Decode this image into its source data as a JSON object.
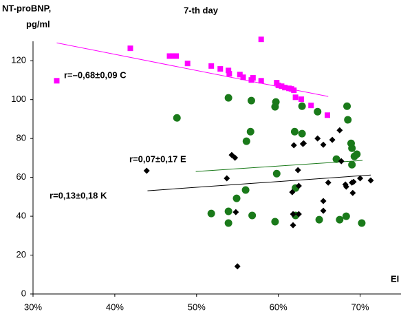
{
  "chart_data": {
    "type": "scatter",
    "title": "7-th day",
    "y_label": [
      "NT-proBNP,",
      "pg/ml"
    ],
    "x_label": "EI",
    "xlim": [
      30,
      75
    ],
    "ylim": [
      0,
      130
    ],
    "xticks": [
      {
        "value": 30,
        "label": "30%"
      },
      {
        "value": 40,
        "label": "40%"
      },
      {
        "value": 50,
        "label": "50%"
      },
      {
        "value": 60,
        "label": "60%"
      },
      {
        "value": 70,
        "label": "70%"
      }
    ],
    "yticks": [
      0,
      20,
      40,
      60,
      80,
      100,
      120
    ],
    "grid": false,
    "series": [
      {
        "marker": "square",
        "color": "#ff00ff",
        "annotation": "r=–0,68±0,09 C",
        "x": [
          32.9,
          41.9,
          46.7,
          47.1,
          47.5,
          48.9,
          51.8,
          52.9,
          53.9,
          54.0,
          55.3,
          55.7,
          56.7,
          56.9,
          57.9,
          57.9,
          59.8,
          60.0,
          60.4,
          60.8,
          61.3,
          61.6,
          61.9,
          62.1,
          62.8,
          64.0,
          66.0
        ],
        "y": [
          109.7,
          126.4,
          122.4,
          122.4,
          122.4,
          118.6,
          117.3,
          115.8,
          115.0,
          113.3,
          112.9,
          111.5,
          110.1,
          111.2,
          109.7,
          131.0,
          108.7,
          107.3,
          106.9,
          106.2,
          105.8,
          105.5,
          104.8,
          101.2,
          100.2,
          97.0,
          92.0
        ],
        "trend": {
          "x": [
            32.9,
            66.1
          ],
          "y": [
            129.2,
            101.6
          ]
        }
      },
      {
        "marker": "circle",
        "color": "#1a7a1a",
        "annotation": "r=0,07±0,17 E",
        "x": [
          47.6,
          51.8,
          53.9,
          53.9,
          53.9,
          54.9,
          56.0,
          56.1,
          56.6,
          56.7,
          56.8,
          59.6,
          59.7,
          59.6,
          59.8,
          62.0,
          62.1,
          62.1,
          62.9,
          62.9,
          64.8,
          65.0,
          67.1,
          67.5,
          68.3,
          68.4,
          68.5,
          68.9,
          69.0,
          69.0,
          69.3,
          69.6,
          70.2
        ],
        "y": [
          90.6,
          41.4,
          100.9,
          42.5,
          36.5,
          49.2,
          53.5,
          78.6,
          83.5,
          99.5,
          40.4,
          96.3,
          98.8,
          37.2,
          61.9,
          83.5,
          40.4,
          54.5,
          96.6,
          82.5,
          93.8,
          38.2,
          69.4,
          38.2,
          40.0,
          96.6,
          89.6,
          77.5,
          75.0,
          66.5,
          70.8,
          71.9,
          36.5
        ],
        "trend": {
          "x": [
            49.9,
            70.3
          ],
          "y": [
            63.0,
            68.7
          ]
        }
      },
      {
        "marker": "diamond",
        "color": "#000000",
        "annotation": "r=0,13±0,18 K",
        "x": [
          43.9,
          53.7,
          54.3,
          54.7,
          54.8,
          55.0,
          61.7,
          61.8,
          61.9,
          61.8,
          62.4,
          62.5,
          62.5,
          63.0,
          63.1,
          64.8,
          65.5,
          65.5,
          65.5,
          66.6,
          66.1,
          67.5,
          67.7,
          68.2,
          68.3,
          69.0,
          69.1,
          69.2,
          70.0,
          71.3
        ],
        "y": [
          63.4,
          59.5,
          71.5,
          70.1,
          42.1,
          14.2,
          52.4,
          41.1,
          76.5,
          35.4,
          63.7,
          55.6,
          41.1,
          77.2,
          77.5,
          80.0,
          47.8,
          42.8,
          76.8,
          79.3,
          57.3,
          84.2,
          68.3,
          56.3,
          55.2,
          57.3,
          52.0,
          57.7,
          59.5,
          58.4
        ],
        "trend": {
          "x": [
            44.0,
            71.3
          ],
          "y": [
            53.1,
            61.2
          ]
        }
      }
    ]
  }
}
